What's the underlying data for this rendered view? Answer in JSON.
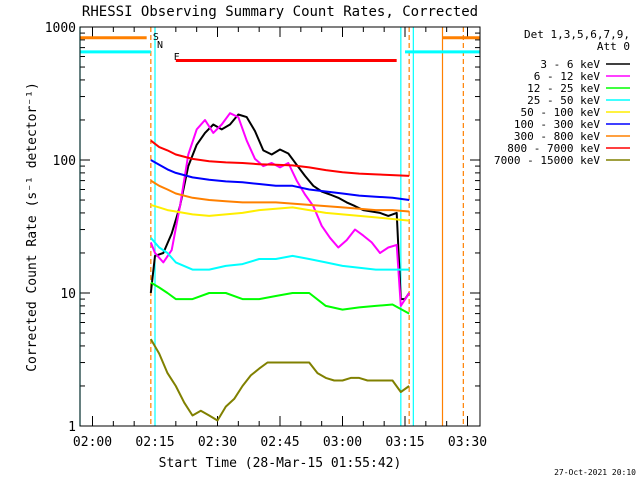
{
  "chart_data": {
    "type": "line",
    "title": "RHESSI Observing Summary Count Rates, Corrected",
    "ylabel": "Corrected Count Rate (s⁻¹ detector⁻¹)",
    "xlabel": "Start Time (28-Mar-15 01:55:42)",
    "footer": "27-Oct-2021 20:10",
    "yscale": "log",
    "ylim": [
      1,
      1000
    ],
    "xlim": [
      "01:57",
      "03:33"
    ],
    "y_ticks": [
      {
        "v": 1,
        "label": "1"
      },
      {
        "v": 10,
        "label": "10"
      },
      {
        "v": 100,
        "label": "100"
      },
      {
        "v": 1000,
        "label": "1000"
      }
    ],
    "x_ticks": [
      {
        "t": "02:00",
        "label": "02:00"
      },
      {
        "t": "02:15",
        "label": "02:15"
      },
      {
        "t": "02:30",
        "label": "02:30"
      },
      {
        "t": "02:45",
        "label": "02:45"
      },
      {
        "t": "03:00",
        "label": "03:00"
      },
      {
        "t": "03:15",
        "label": "03:15"
      },
      {
        "t": "03:30",
        "label": "03:30"
      }
    ],
    "legend_header": [
      "Det 1,3,5,6,7,9,",
      "Att 0"
    ],
    "legend_position": "right",
    "flags": [
      {
        "label": "S",
        "color": "#ff8000",
        "t": "02:14"
      },
      {
        "label": "N",
        "color": "#00dddd",
        "t": "02:15"
      },
      {
        "label": "F",
        "color": "#ff0000",
        "t": "02:19"
      }
    ],
    "series": [
      {
        "name": "3 - 6 keV",
        "color": "#000000",
        "points": [
          [
            "02:14",
            10
          ],
          [
            "02:15",
            19
          ],
          [
            "02:17",
            20
          ],
          [
            "02:19",
            28
          ],
          [
            "02:21",
            45
          ],
          [
            "02:23",
            90
          ],
          [
            "02:25",
            130
          ],
          [
            "02:27",
            160
          ],
          [
            "02:29",
            185
          ],
          [
            "02:31",
            170
          ],
          [
            "02:33",
            185
          ],
          [
            "02:35",
            220
          ],
          [
            "02:37",
            210
          ],
          [
            "02:39",
            165
          ],
          [
            "02:41",
            118
          ],
          [
            "02:43",
            110
          ],
          [
            "02:45",
            120
          ],
          [
            "02:47",
            112
          ],
          [
            "02:49",
            92
          ],
          [
            "02:51",
            76
          ],
          [
            "02:53",
            64
          ],
          [
            "02:55",
            58
          ],
          [
            "02:57",
            55
          ],
          [
            "02:59",
            52
          ],
          [
            "03:01",
            48
          ],
          [
            "03:03",
            45
          ],
          [
            "03:05",
            42
          ],
          [
            "03:07",
            41
          ],
          [
            "03:09",
            40
          ],
          [
            "03:11",
            38
          ],
          [
            "03:13",
            40
          ],
          [
            "03:14",
            9
          ],
          [
            "03:15",
            9
          ],
          [
            "03:16",
            10
          ]
        ]
      },
      {
        "name": "6 - 12 keV",
        "color": "#ff00ff",
        "points": [
          [
            "02:14",
            24
          ],
          [
            "02:15",
            20
          ],
          [
            "02:17",
            17
          ],
          [
            "02:19",
            21
          ],
          [
            "02:21",
            45
          ],
          [
            "02:23",
            110
          ],
          [
            "02:25",
            170
          ],
          [
            "02:27",
            200
          ],
          [
            "02:29",
            160
          ],
          [
            "02:31",
            185
          ],
          [
            "02:33",
            225
          ],
          [
            "02:35",
            210
          ],
          [
            "02:37",
            140
          ],
          [
            "02:39",
            102
          ],
          [
            "02:41",
            90
          ],
          [
            "02:43",
            95
          ],
          [
            "02:45",
            88
          ],
          [
            "02:47",
            95
          ],
          [
            "02:49",
            70
          ],
          [
            "02:51",
            55
          ],
          [
            "02:53",
            45
          ],
          [
            "02:55",
            32
          ],
          [
            "02:57",
            26
          ],
          [
            "02:59",
            22
          ],
          [
            "03:01",
            25
          ],
          [
            "03:03",
            30
          ],
          [
            "03:05",
            27
          ],
          [
            "03:07",
            24
          ],
          [
            "03:09",
            20
          ],
          [
            "03:11",
            22
          ],
          [
            "03:13",
            23
          ],
          [
            "03:14",
            8
          ],
          [
            "03:16",
            10
          ]
        ]
      },
      {
        "name": "12 - 25 keV",
        "color": "#00ff00",
        "points": [
          [
            "02:14",
            12
          ],
          [
            "02:16",
            11
          ],
          [
            "02:18",
            10
          ],
          [
            "02:20",
            9
          ],
          [
            "02:24",
            9
          ],
          [
            "02:28",
            10
          ],
          [
            "02:32",
            10
          ],
          [
            "02:36",
            9
          ],
          [
            "02:40",
            9
          ],
          [
            "02:44",
            9.5
          ],
          [
            "02:48",
            10
          ],
          [
            "02:52",
            10
          ],
          [
            "02:56",
            8
          ],
          [
            "03:00",
            7.5
          ],
          [
            "03:04",
            7.8
          ],
          [
            "03:08",
            8
          ],
          [
            "03:12",
            8.2
          ],
          [
            "03:16",
            7
          ]
        ]
      },
      {
        "name": "25 - 50 keV",
        "color": "#00ffff",
        "points": [
          [
            "02:14",
            26
          ],
          [
            "02:16",
            22
          ],
          [
            "02:18",
            20
          ],
          [
            "02:20",
            17
          ],
          [
            "02:24",
            15
          ],
          [
            "02:28",
            15
          ],
          [
            "02:32",
            16
          ],
          [
            "02:36",
            16.5
          ],
          [
            "02:40",
            18
          ],
          [
            "02:44",
            18
          ],
          [
            "02:48",
            19
          ],
          [
            "02:52",
            18
          ],
          [
            "02:56",
            17
          ],
          [
            "03:00",
            16
          ],
          [
            "03:04",
            15.5
          ],
          [
            "03:08",
            15
          ],
          [
            "03:12",
            15
          ],
          [
            "03:16",
            15
          ]
        ]
      },
      {
        "name": "50 - 100 keV",
        "color": "#ffee00",
        "points": [
          [
            "02:14",
            46
          ],
          [
            "02:16",
            44
          ],
          [
            "02:18",
            42
          ],
          [
            "02:20",
            41
          ],
          [
            "02:24",
            39
          ],
          [
            "02:28",
            38
          ],
          [
            "02:32",
            39
          ],
          [
            "02:36",
            40
          ],
          [
            "02:40",
            42
          ],
          [
            "02:44",
            43
          ],
          [
            "02:48",
            44
          ],
          [
            "02:52",
            42
          ],
          [
            "02:56",
            40
          ],
          [
            "03:00",
            39
          ],
          [
            "03:04",
            38
          ],
          [
            "03:08",
            37
          ],
          [
            "03:12",
            36
          ],
          [
            "03:16",
            35
          ]
        ]
      },
      {
        "name": "100 - 300 keV",
        "color": "#0000ff",
        "points": [
          [
            "02:14",
            100
          ],
          [
            "02:16",
            92
          ],
          [
            "02:18",
            85
          ],
          [
            "02:20",
            80
          ],
          [
            "02:24",
            74
          ],
          [
            "02:28",
            71
          ],
          [
            "02:32",
            69
          ],
          [
            "02:36",
            68
          ],
          [
            "02:40",
            66
          ],
          [
            "02:44",
            64
          ],
          [
            "02:48",
            64
          ],
          [
            "02:52",
            60
          ],
          [
            "02:56",
            58
          ],
          [
            "03:00",
            56
          ],
          [
            "03:04",
            54
          ],
          [
            "03:08",
            53
          ],
          [
            "03:12",
            52
          ],
          [
            "03:16",
            50
          ]
        ]
      },
      {
        "name": "300 - 800 keV",
        "color": "#ff8000",
        "points": [
          [
            "02:14",
            70
          ],
          [
            "02:16",
            64
          ],
          [
            "02:18",
            60
          ],
          [
            "02:20",
            56
          ],
          [
            "02:24",
            52
          ],
          [
            "02:28",
            50
          ],
          [
            "02:32",
            49
          ],
          [
            "02:36",
            48
          ],
          [
            "02:40",
            48
          ],
          [
            "02:44",
            48
          ],
          [
            "02:48",
            47
          ],
          [
            "02:52",
            46
          ],
          [
            "02:56",
            45
          ],
          [
            "03:00",
            44
          ],
          [
            "03:04",
            43
          ],
          [
            "03:08",
            42
          ],
          [
            "03:12",
            42
          ],
          [
            "03:16",
            41
          ]
        ]
      },
      {
        "name": "800 - 7000 keV",
        "color": "#ff0000",
        "points": [
          [
            "02:14",
            140
          ],
          [
            "02:16",
            125
          ],
          [
            "02:18",
            118
          ],
          [
            "02:20",
            110
          ],
          [
            "02:24",
            102
          ],
          [
            "02:28",
            98
          ],
          [
            "02:32",
            96
          ],
          [
            "02:36",
            95
          ],
          [
            "02:40",
            93
          ],
          [
            "02:44",
            92
          ],
          [
            "02:48",
            91
          ],
          [
            "02:52",
            88
          ],
          [
            "02:56",
            84
          ],
          [
            "03:00",
            81
          ],
          [
            "03:04",
            79
          ],
          [
            "03:08",
            78
          ],
          [
            "03:12",
            77
          ],
          [
            "03:16",
            76
          ]
        ]
      },
      {
        "name": "7000 - 15000 keV",
        "color": "#808000",
        "points": [
          [
            "02:14",
            4.5
          ],
          [
            "02:16",
            3.5
          ],
          [
            "02:18",
            2.5
          ],
          [
            "02:20",
            2
          ],
          [
            "02:22",
            1.5
          ],
          [
            "02:24",
            1.2
          ],
          [
            "02:26",
            1.3
          ],
          [
            "02:28",
            1.2
          ],
          [
            "02:30",
            1.1
          ],
          [
            "02:32",
            1.4
          ],
          [
            "02:34",
            1.6
          ],
          [
            "02:36",
            2
          ],
          [
            "02:38",
            2.4
          ],
          [
            "02:40",
            2.7
          ],
          [
            "02:42",
            3
          ],
          [
            "02:44",
            3
          ],
          [
            "02:46",
            3
          ],
          [
            "02:48",
            3
          ],
          [
            "02:50",
            3
          ],
          [
            "02:52",
            3
          ],
          [
            "02:54",
            2.5
          ],
          [
            "02:56",
            2.3
          ],
          [
            "02:58",
            2.2
          ],
          [
            "03:00",
            2.2
          ],
          [
            "03:02",
            2.3
          ],
          [
            "03:04",
            2.3
          ],
          [
            "03:06",
            2.2
          ],
          [
            "03:08",
            2.2
          ],
          [
            "03:10",
            2.2
          ],
          [
            "03:12",
            2.2
          ],
          [
            "03:14",
            1.8
          ],
          [
            "03:16",
            2
          ]
        ]
      }
    ],
    "attenuator_bars": [
      {
        "color": "#00ffff",
        "from": "01:57",
        "to": "02:14",
        "level": 650
      },
      {
        "color": "#ff8000",
        "from": "01:57",
        "to": "02:13",
        "level": 830
      },
      {
        "color": "#ff0000",
        "from": "02:20",
        "to": "03:13",
        "level": 560
      },
      {
        "color": "#00ffff",
        "from": "03:15",
        "to": "03:33",
        "level": 650
      },
      {
        "color": "#ff8000",
        "from": "03:24",
        "to": "03:33",
        "level": 830
      }
    ],
    "vertical_lines": [
      {
        "color": "#00ffff",
        "t": "01:57",
        "dashed": false
      },
      {
        "color": "#ff8000",
        "t": "02:14",
        "dashed": true
      },
      {
        "color": "#00ffff",
        "t": "02:15",
        "dashed": false
      },
      {
        "color": "#00ffff",
        "t": "03:14",
        "dashed": false
      },
      {
        "color": "#ff8000",
        "t": "03:16",
        "dashed": true
      },
      {
        "color": "#00ffff",
        "t": "03:17",
        "dashed": false
      },
      {
        "color": "#ff8000",
        "t": "03:24",
        "dashed": false
      },
      {
        "color": "#ff8000",
        "t": "03:29",
        "dashed": true
      }
    ]
  }
}
